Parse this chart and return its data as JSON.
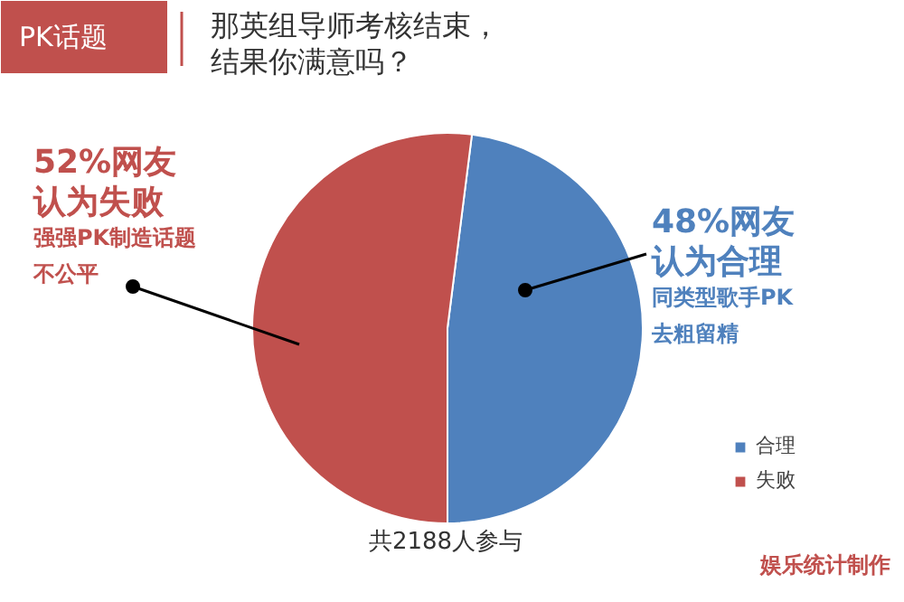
{
  "chart_data": {
    "type": "pie",
    "title": "那英组导师考核结束，结果你满意吗？",
    "subtitle": "PK话题",
    "categories": [
      "合理",
      "失败"
    ],
    "values": [
      48,
      52
    ],
    "colors": [
      "#4f81bd",
      "#c0504d"
    ],
    "legend": "bottom right",
    "annotations": [
      "52%网友",
      "认为失败",
      "强强PK制造话题",
      "不公平",
      "48%网友",
      "认为合理",
      "同类型歌手PK",
      "去粗留精",
      "共2188人参与",
      "娱乐统计制作"
    ]
  }
}
